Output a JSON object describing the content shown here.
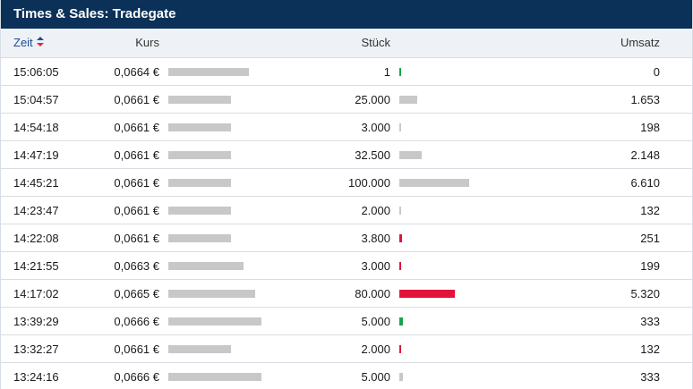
{
  "widget": {
    "title": "Times & Sales: Tradegate",
    "headers": {
      "zeit": "Zeit",
      "kurs": "Kurs",
      "stueck": "Stück",
      "umsatz": "Umsatz"
    }
  },
  "colors": {
    "header_bg": "#0b3158",
    "up": "#1aa34a",
    "down": "#e2123b",
    "neutral": "#c8c8c8"
  },
  "rows": [
    {
      "zeit": "15:06:05",
      "kurs": "0,0664 €",
      "stueck": "1",
      "umsatz": "0",
      "direction": "up"
    },
    {
      "zeit": "15:04:57",
      "kurs": "0,0661 €",
      "stueck": "25.000",
      "umsatz": "1.653",
      "direction": "neutral"
    },
    {
      "zeit": "14:54:18",
      "kurs": "0,0661 €",
      "stueck": "3.000",
      "umsatz": "198",
      "direction": "neutral"
    },
    {
      "zeit": "14:47:19",
      "kurs": "0,0661 €",
      "stueck": "32.500",
      "umsatz": "2.148",
      "direction": "neutral"
    },
    {
      "zeit": "14:45:21",
      "kurs": "0,0661 €",
      "stueck": "100.000",
      "umsatz": "6.610",
      "direction": "neutral"
    },
    {
      "zeit": "14:23:47",
      "kurs": "0,0661 €",
      "stueck": "2.000",
      "umsatz": "132",
      "direction": "neutral"
    },
    {
      "zeit": "14:22:08",
      "kurs": "0,0661 €",
      "stueck": "3.800",
      "umsatz": "251",
      "direction": "down"
    },
    {
      "zeit": "14:21:55",
      "kurs": "0,0663 €",
      "stueck": "3.000",
      "umsatz": "199",
      "direction": "down"
    },
    {
      "zeit": "14:17:02",
      "kurs": "0,0665 €",
      "stueck": "80.000",
      "umsatz": "5.320",
      "direction": "down"
    },
    {
      "zeit": "13:39:29",
      "kurs": "0,0666 €",
      "stueck": "5.000",
      "umsatz": "333",
      "direction": "up"
    },
    {
      "zeit": "13:32:27",
      "kurs": "0,0661 €",
      "stueck": "2.000",
      "umsatz": "132",
      "direction": "down"
    },
    {
      "zeit": "13:24:16",
      "kurs": "0,0666 €",
      "stueck": "5.000",
      "umsatz": "333",
      "direction": "neutral"
    }
  ]
}
